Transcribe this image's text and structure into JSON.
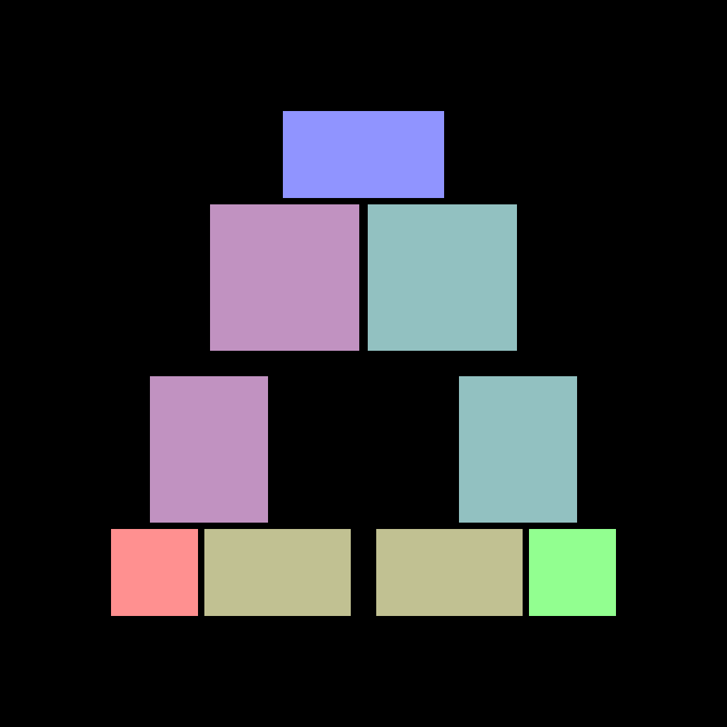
{
  "background": "#000000",
  "blocks": {
    "top": {
      "color": "#9094ff"
    },
    "upper_left": {
      "color": "#c192c1"
    },
    "upper_right": {
      "color": "#92c1c1"
    },
    "middle_left": {
      "color": "#c192c1"
    },
    "middle_right": {
      "color": "#92c1c1"
    },
    "bottom_a": {
      "color": "#ff9090"
    },
    "bottom_b": {
      "color": "#c1c192"
    },
    "bottom_c": {
      "color": "#c1c192"
    },
    "bottom_d": {
      "color": "#92ff90"
    }
  }
}
